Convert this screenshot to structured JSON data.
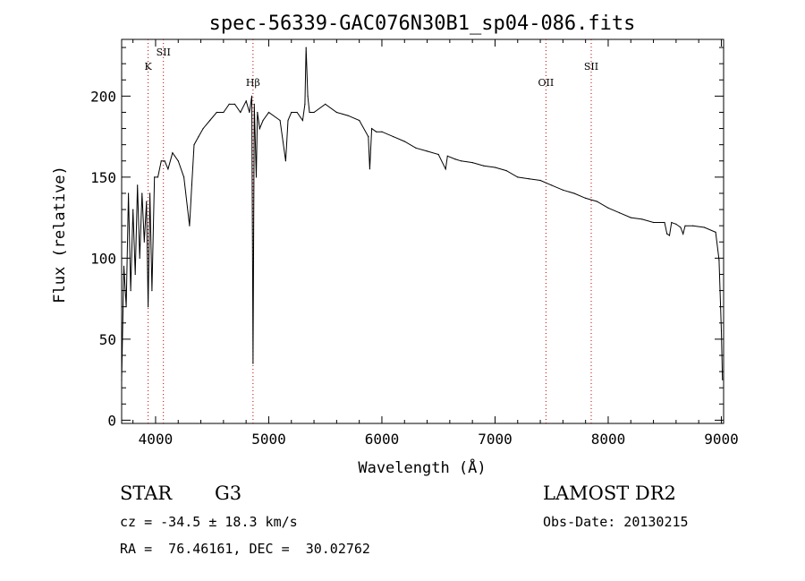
{
  "chart_data": {
    "type": "line",
    "title": "spec-56339-GAC076N30B1_sp04-086.fits",
    "xlabel": "Wavelength (Å)",
    "ylabel": "Flux (relative)",
    "xlim": [
      3700,
      9020
    ],
    "ylim": [
      -2,
      235
    ],
    "x_ticks": [
      4000,
      5000,
      6000,
      7000,
      8000,
      9000
    ],
    "y_ticks": [
      0,
      50,
      100,
      150,
      200
    ],
    "grid": false,
    "line_color": "#000000",
    "marker_line_color": "#c00000",
    "lines": [
      {
        "label": "K",
        "wavelength": 3934
      },
      {
        "label": "SII",
        "wavelength": 4069
      },
      {
        "label": "Hβ",
        "wavelength": 4861
      },
      {
        "label": "OII",
        "wavelength": 7450
      },
      {
        "label": "SII",
        "wavelength": 7850
      }
    ],
    "series": [
      {
        "x": [
          3700,
          3720,
          3740,
          3760,
          3780,
          3800,
          3820,
          3840,
          3860,
          3880,
          3900,
          3920,
          3934,
          3950,
          3968,
          3990,
          4020,
          4050,
          4080,
          4110,
          4150,
          4200,
          4250,
          4300,
          4320,
          4340,
          4380,
          4420,
          4480,
          4540,
          4600,
          4650,
          4700,
          4750,
          4800,
          4830,
          4850,
          4861,
          4872,
          4890,
          4900,
          4920,
          4950,
          5000,
          5100,
          5150,
          5170,
          5200,
          5250,
          5300,
          5320,
          5330,
          5345,
          5360,
          5400,
          5500,
          5600,
          5700,
          5800,
          5880,
          5893,
          5910,
          5950,
          6000,
          6100,
          6200,
          6300,
          6400,
          6500,
          6563,
          6580,
          6650,
          6700,
          6800,
          6900,
          7000,
          7100,
          7200,
          7300,
          7400,
          7500,
          7600,
          7700,
          7800,
          7900,
          8000,
          8100,
          8200,
          8300,
          8400,
          8498,
          8520,
          8542,
          8560,
          8600,
          8640,
          8662,
          8680,
          8750,
          8850,
          8950,
          8980,
          9000,
          9010
        ],
        "y": [
          25,
          95,
          70,
          140,
          80,
          130,
          90,
          145,
          100,
          140,
          110,
          135,
          70,
          140,
          80,
          150,
          150,
          160,
          160,
          155,
          165,
          160,
          150,
          120,
          145,
          170,
          175,
          180,
          185,
          190,
          190,
          195,
          195,
          190,
          197,
          190,
          200,
          35,
          195,
          150,
          190,
          180,
          185,
          190,
          185,
          160,
          185,
          190,
          190,
          185,
          195,
          230,
          200,
          190,
          190,
          195,
          190,
          188,
          185,
          175,
          155,
          180,
          178,
          178,
          175,
          172,
          168,
          166,
          164,
          155,
          163,
          161,
          160,
          159,
          157,
          156,
          154,
          150,
          149,
          148,
          145,
          142,
          140,
          137,
          135,
          131,
          128,
          125,
          124,
          122,
          122,
          115,
          114,
          122,
          121,
          119,
          115,
          120,
          120,
          119,
          116,
          99,
          55,
          25
        ]
      }
    ]
  },
  "info": {
    "object_class": "STAR",
    "subclass": "G3",
    "redshift": "cz = -34.5 ± 18.3 km/s",
    "coords": "RA =  76.46161, DEC =  30.02762",
    "survey": "LAMOST DR2",
    "obs_date": "Obs-Date: 20130215"
  }
}
